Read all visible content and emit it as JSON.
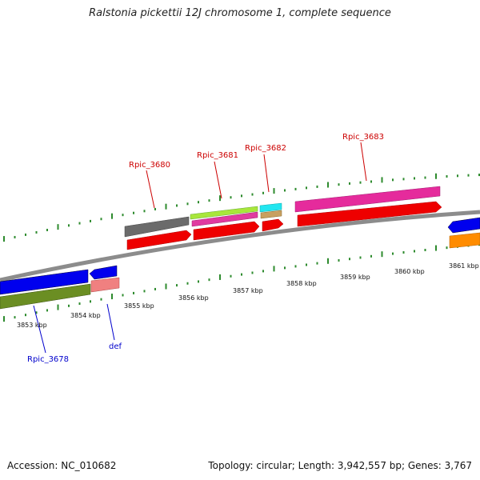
{
  "title": "Ralstonia pickettii 12J chromosome 1, complete sequence",
  "footer": {
    "accession": "Accession: NC_010682",
    "summary": "Topology: circular; Length: 3,942,557 bp; Genes: 3,767"
  },
  "colors": {
    "backbone": "#8c8c8c",
    "tick_marks": "#2e8b2e",
    "label_top": "#cc0000",
    "label_bottom": "#0000cc"
  },
  "scale_labels": [
    "3853 kbp",
    "3854 kbp",
    "3855 kbp",
    "3856 kbp",
    "3857 kbp",
    "3858 kbp",
    "3859 kbp",
    "3860 kbp",
    "3861 kbp"
  ],
  "gene_labels_top": [
    "Rpic_3680",
    "Rpic_3681",
    "Rpic_3682",
    "Rpic_3683"
  ],
  "gene_labels_bottom": [
    "Rpic_3678",
    "def"
  ]
}
